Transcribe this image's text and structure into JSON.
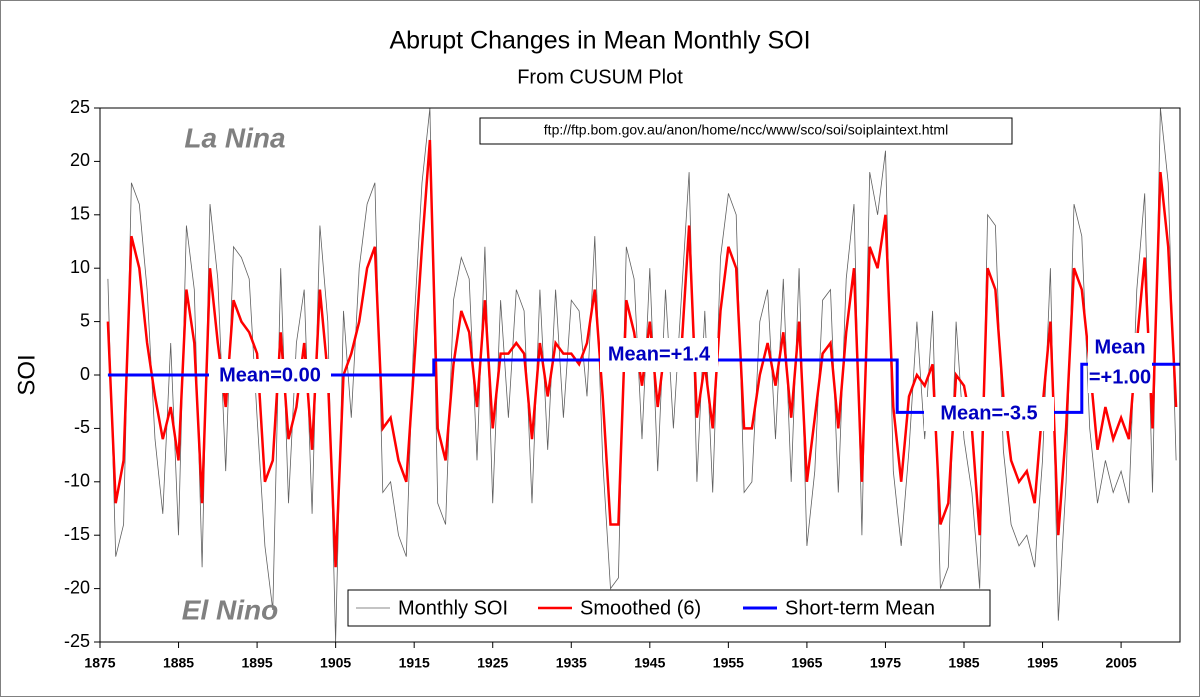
{
  "chart_data": {
    "type": "line",
    "title": "Abrupt Changes in Mean Monthly SOI",
    "subtitle": "From CUSUM Plot",
    "y_label": "SOI",
    "source": "ftp://ftp.bom.gov.au/anon/home/ncc/www/sco/soi/soiplaintext.html",
    "annotations": [
      "La Nina",
      "El Nino",
      "Mean=0.00",
      "Mean=+1.4",
      "Mean=-3.5",
      "Mean",
      "=+1.00"
    ],
    "xlim": [
      1875,
      2012.5
    ],
    "xticks": [
      1875,
      1885,
      1895,
      1905,
      1915,
      1925,
      1935,
      1945,
      1955,
      1965,
      1975,
      1985,
      1995,
      2005
    ],
    "ylim": [
      -25,
      25
    ],
    "yticks": [
      -25,
      -20,
      -15,
      -10,
      -5,
      0,
      5,
      10,
      15,
      20,
      25
    ],
    "x": [
      1876,
      1877,
      1878,
      1879,
      1880,
      1881,
      1882,
      1883,
      1884,
      1885,
      1886,
      1887,
      1888,
      1889,
      1890,
      1891,
      1892,
      1893,
      1894,
      1895,
      1896,
      1897,
      1898,
      1899,
      1900,
      1901,
      1902,
      1903,
      1904,
      1905,
      1906,
      1907,
      1908,
      1909,
      1910,
      1911,
      1912,
      1913,
      1914,
      1915,
      1916,
      1917,
      1918,
      1919,
      1920,
      1921,
      1922,
      1923,
      1924,
      1925,
      1926,
      1927,
      1928,
      1929,
      1930,
      1931,
      1932,
      1933,
      1934,
      1935,
      1936,
      1937,
      1938,
      1939,
      1940,
      1941,
      1942,
      1943,
      1944,
      1945,
      1946,
      1947,
      1948,
      1949,
      1950,
      1951,
      1952,
      1953,
      1954,
      1955,
      1956,
      1957,
      1958,
      1959,
      1960,
      1961,
      1962,
      1963,
      1964,
      1965,
      1966,
      1967,
      1968,
      1969,
      1970,
      1971,
      1972,
      1973,
      1974,
      1975,
      1976,
      1977,
      1978,
      1979,
      1980,
      1981,
      1982,
      1983,
      1984,
      1985,
      1986,
      1987,
      1988,
      1989,
      1990,
      1991,
      1992,
      1993,
      1994,
      1995,
      1996,
      1997,
      1998,
      1999,
      2000,
      2001,
      2002,
      2003,
      2004,
      2005,
      2006,
      2007,
      2008,
      2009,
      2010,
      2011,
      2012
    ],
    "series": [
      {
        "name": "Monthly SOI",
        "color": "#606060",
        "width": 0.8,
        "values": [
          9,
          -17,
          -14,
          18,
          16,
          8,
          -6,
          -13,
          3,
          -15,
          14,
          8,
          -18,
          16,
          9,
          -9,
          12,
          11,
          9,
          -4,
          -16,
          -22,
          10,
          -12,
          3,
          8,
          -13,
          14,
          5,
          -25,
          6,
          -4,
          10,
          16,
          18,
          -11,
          -10,
          -15,
          -17,
          5,
          18,
          25,
          -12,
          -14,
          7,
          11,
          9,
          -8,
          12,
          -12,
          7,
          -4,
          8,
          6,
          -12,
          8,
          -7,
          8,
          -4,
          7,
          6,
          -2,
          13,
          -8,
          -20,
          -19,
          12,
          9,
          -6,
          10,
          -9,
          8,
          -5,
          7,
          19,
          -10,
          6,
          -11,
          11,
          17,
          15,
          -11,
          -10,
          5,
          8,
          -6,
          9,
          -10,
          10,
          -16,
          -9,
          7,
          8,
          -11,
          9,
          16,
          -15,
          19,
          15,
          21,
          -9,
          -16,
          -7,
          5,
          -6,
          6,
          -20,
          -18,
          5,
          -6,
          -11,
          -20,
          15,
          14,
          -7,
          -14,
          -16,
          -15,
          -18,
          -8,
          10,
          -23,
          -10,
          16,
          13,
          -5,
          -12,
          -8,
          -11,
          -9,
          -12,
          8,
          17,
          -11,
          25,
          18,
          -8
        ]
      },
      {
        "name": "Smoothed (6)",
        "color": "#ff0000",
        "width": 2.5,
        "values": [
          5,
          -12,
          -8,
          13,
          10,
          3,
          -2,
          -6,
          -3,
          -8,
          8,
          3,
          -12,
          10,
          3,
          -3,
          7,
          5,
          4,
          2,
          -10,
          -8,
          4,
          -6,
          -3,
          3,
          -7,
          8,
          0,
          -18,
          0,
          2,
          5,
          10,
          12,
          -5,
          -4,
          -8,
          -10,
          1,
          12,
          22,
          -5,
          -8,
          1,
          6,
          4,
          -3,
          7,
          -5,
          2,
          2,
          3,
          2,
          -6,
          3,
          -2,
          3,
          2,
          2,
          1,
          3,
          8,
          -2,
          -14,
          -14,
          7,
          4,
          -1,
          5,
          -3,
          3,
          1,
          2,
          14,
          -4,
          1,
          -5,
          6,
          12,
          10,
          -5,
          -5,
          0,
          3,
          -1,
          4,
          -4,
          5,
          -10,
          -4,
          2,
          3,
          -5,
          4,
          10,
          -10,
          12,
          10,
          15,
          -3,
          -10,
          -2,
          0,
          -1,
          1,
          -14,
          -12,
          0,
          -1,
          -5,
          -15,
          10,
          8,
          -2,
          -8,
          -10,
          -9,
          -12,
          -3,
          5,
          -15,
          -5,
          10,
          8,
          1,
          -7,
          -3,
          -6,
          -4,
          -6,
          3,
          11,
          -5,
          19,
          12,
          -3
        ]
      },
      {
        "name": "Short-term Mean",
        "color": "#0000ff",
        "width": 3,
        "x": [
          1876,
          1917.5,
          1917.5,
          1976.5,
          1976.5,
          2000,
          2000,
          2012.5
        ],
        "values": [
          0,
          0,
          1.4,
          1.4,
          -3.5,
          -3.5,
          1,
          1
        ]
      }
    ]
  }
}
